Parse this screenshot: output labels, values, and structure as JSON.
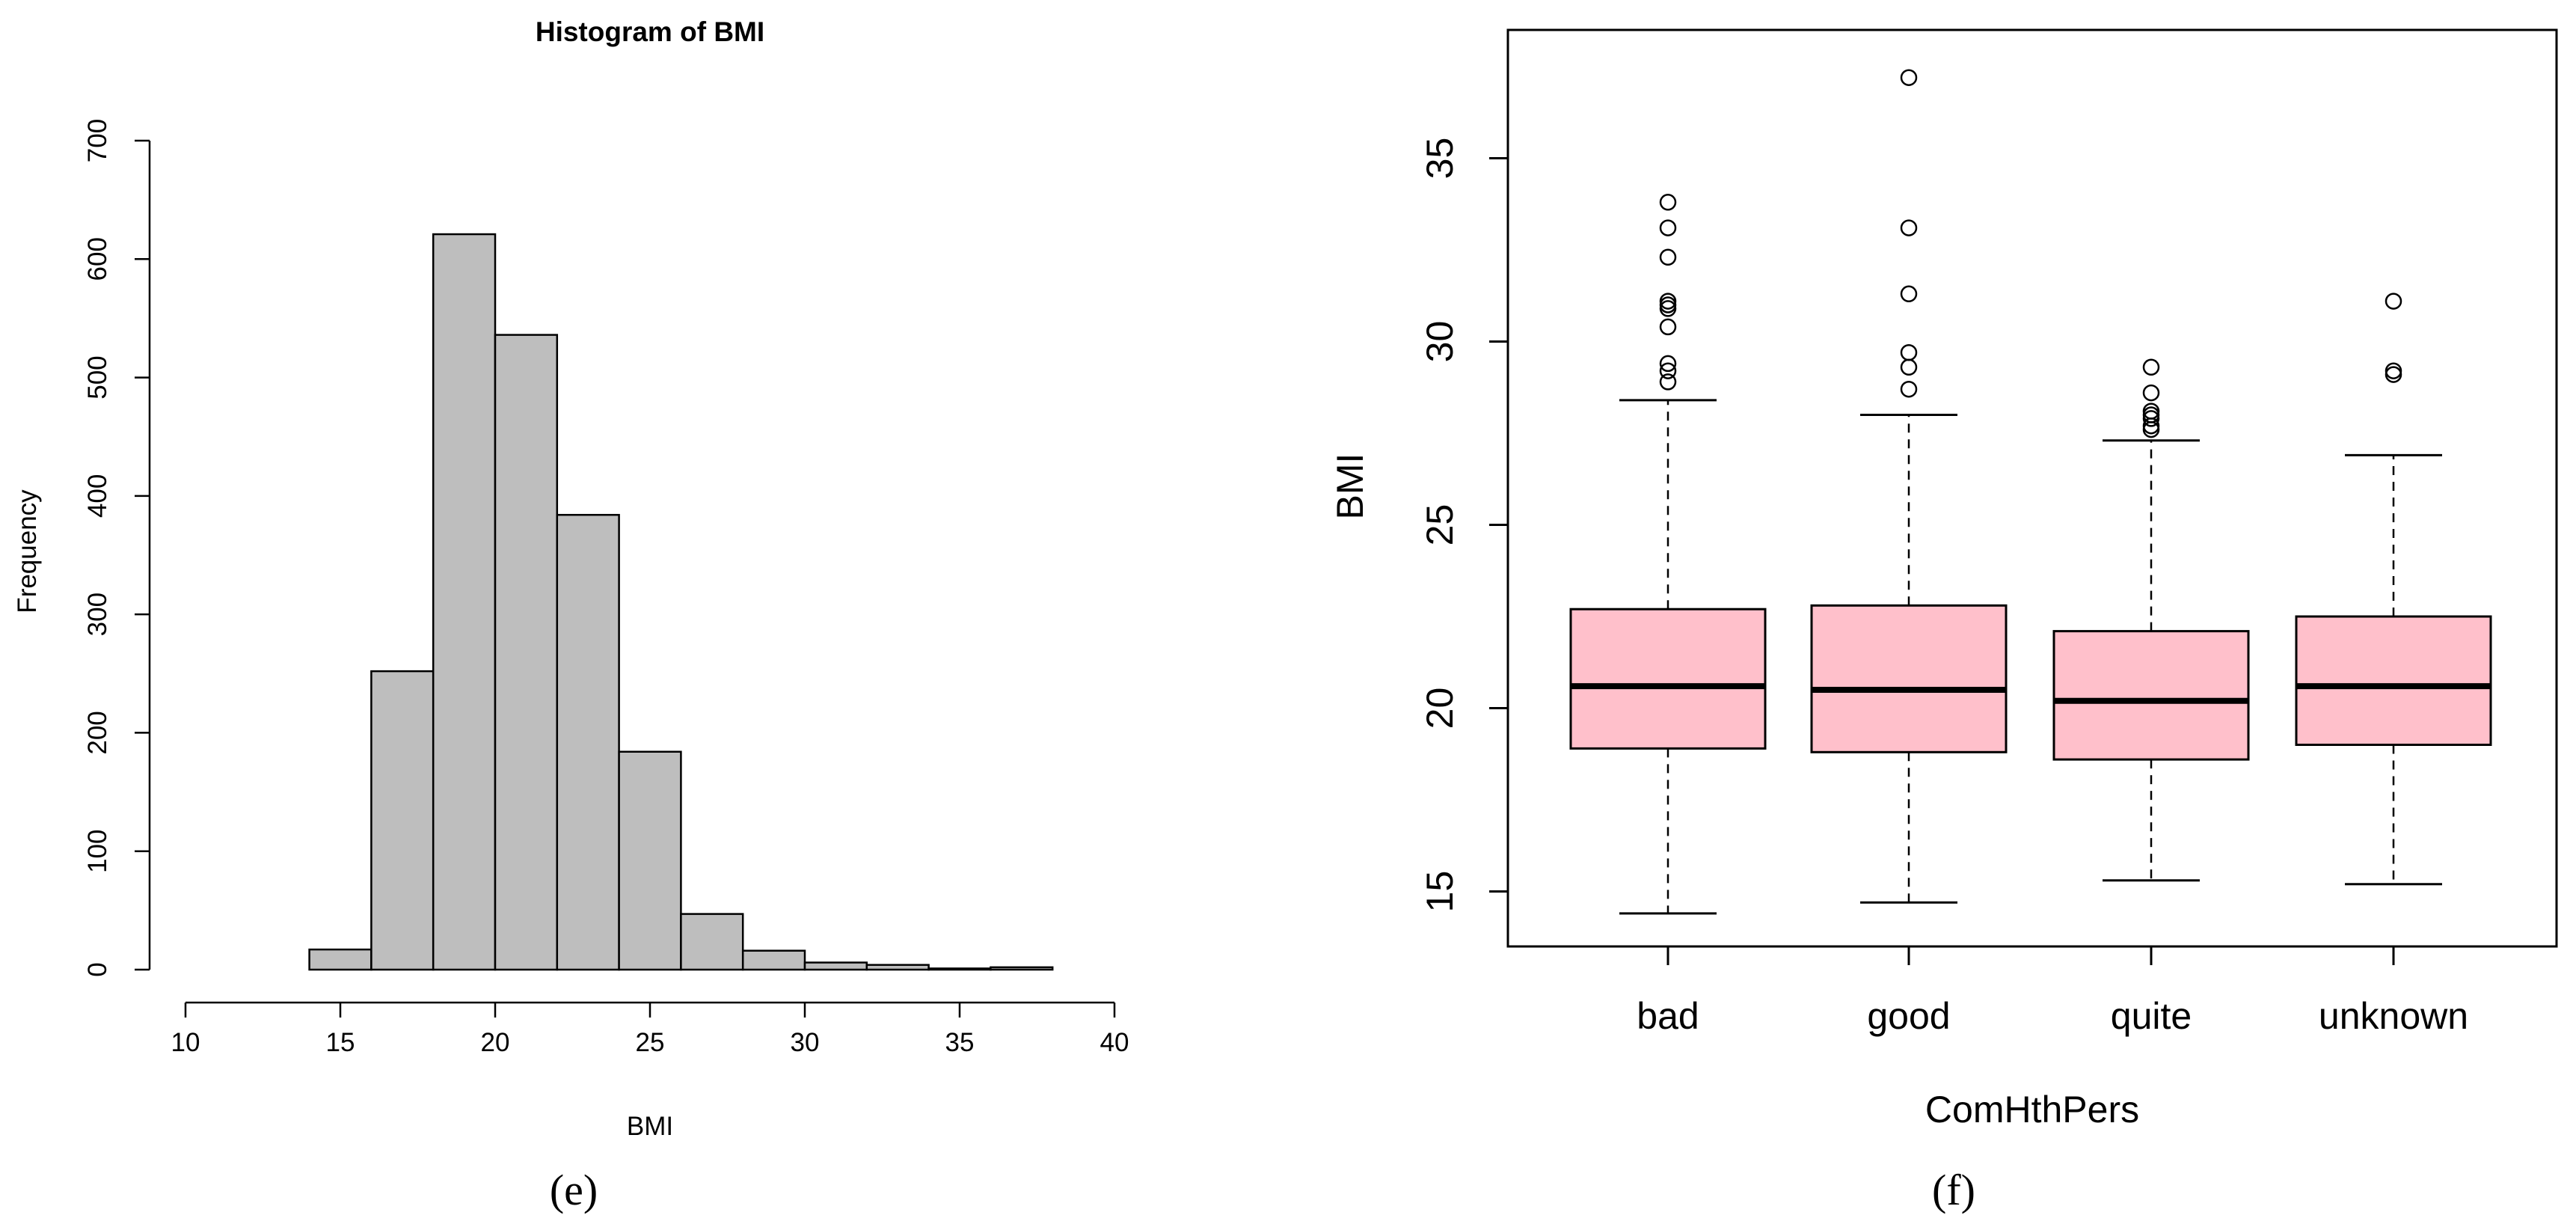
{
  "panels": {
    "e": "(e)",
    "f": "(f)"
  },
  "colors": {
    "hist_fill": "#bebebe",
    "box_fill": "#ffc0cb",
    "stroke": "#000000"
  },
  "chart_data": [
    {
      "type": "bar",
      "subtype": "histogram",
      "title": "Histogram of BMI",
      "xlabel": "BMI",
      "ylabel": "Frequency",
      "bins": [
        {
          "from": 14,
          "to": 16,
          "count": 17
        },
        {
          "from": 16,
          "to": 18,
          "count": 252
        },
        {
          "from": 18,
          "to": 20,
          "count": 621
        },
        {
          "from": 20,
          "to": 22,
          "count": 536
        },
        {
          "from": 22,
          "to": 24,
          "count": 384
        },
        {
          "from": 24,
          "to": 26,
          "count": 184
        },
        {
          "from": 26,
          "to": 28,
          "count": 47
        },
        {
          "from": 28,
          "to": 30,
          "count": 16
        },
        {
          "from": 30,
          "to": 32,
          "count": 6
        },
        {
          "from": 32,
          "to": 34,
          "count": 4
        },
        {
          "from": 34,
          "to": 36,
          "count": 1
        },
        {
          "from": 36,
          "to": 38,
          "count": 2
        }
      ],
      "xlim": [
        10,
        40
      ],
      "xticks": [
        10,
        15,
        20,
        25,
        30,
        35,
        40
      ],
      "ylim": [
        0,
        700
      ],
      "yticks": [
        0,
        100,
        200,
        300,
        400,
        500,
        600,
        700
      ],
      "grid": false
    },
    {
      "type": "box",
      "xlabel": "ComHthPers",
      "ylabel": "BMI",
      "ylim": [
        13.5,
        38.5
      ],
      "yticks": [
        15,
        20,
        25,
        30,
        35
      ],
      "groups": [
        {
          "name": "bad",
          "whisker_low": 14.4,
          "q1": 18.9,
          "median": 20.6,
          "q3": 22.7,
          "whisker_high": 28.4,
          "outliers": [
            28.9,
            29.2,
            29.4,
            30.4,
            30.9,
            31.0,
            31.1,
            32.3,
            33.1,
            33.8
          ]
        },
        {
          "name": "good",
          "whisker_low": 14.7,
          "q1": 18.8,
          "median": 20.5,
          "q3": 22.8,
          "whisker_high": 28.0,
          "outliers": [
            28.7,
            29.3,
            29.7,
            31.3,
            33.1,
            37.2
          ]
        },
        {
          "name": "quite",
          "whisker_low": 15.3,
          "q1": 18.6,
          "median": 20.2,
          "q3": 22.1,
          "whisker_high": 27.3,
          "outliers": [
            27.6,
            27.7,
            27.9,
            28.0,
            28.1,
            28.6,
            29.3
          ]
        },
        {
          "name": "unknown",
          "whisker_low": 15.2,
          "q1": 19.0,
          "median": 20.6,
          "q3": 22.5,
          "whisker_high": 26.9,
          "outliers": [
            29.1,
            29.2,
            31.1
          ]
        }
      ],
      "grid": false
    }
  ]
}
